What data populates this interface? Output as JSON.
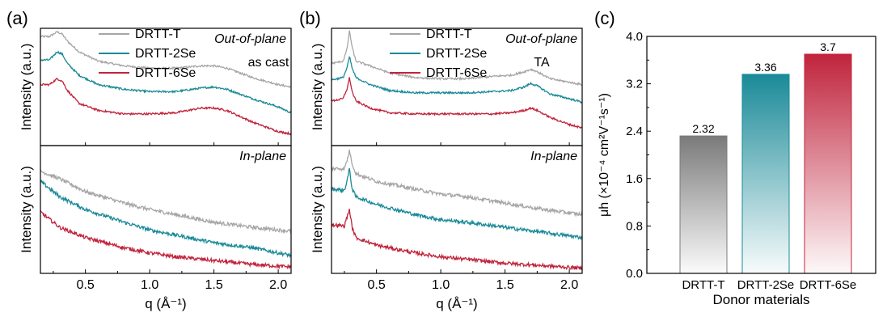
{
  "chart_data": [
    {
      "panel_label": "(a)",
      "type": "line",
      "subplots": [
        {
          "name": "out-of-plane",
          "annotation": "Out-of-plane",
          "annotation2": "as cast",
          "ylabel": "Intensity (a.u.)",
          "series": [
            {
              "name": "DRTT-T",
              "color": "#a6a6a6",
              "x": [
                0.15,
                0.22,
                0.28,
                0.32,
                0.36,
                0.45,
                0.6,
                0.8,
                1.0,
                1.2,
                1.4,
                1.5,
                1.6,
                1.8,
                2.0,
                2.1
              ],
              "y": [
                0.93,
                0.93,
                0.97,
                0.95,
                0.89,
                0.8,
                0.72,
                0.68,
                0.66,
                0.66,
                0.68,
                0.68,
                0.66,
                0.58,
                0.52,
                0.5
              ]
            },
            {
              "name": "DRTT-2Se",
              "color": "#1a8a98",
              "x": [
                0.15,
                0.22,
                0.28,
                0.32,
                0.36,
                0.45,
                0.6,
                0.8,
                1.0,
                1.2,
                1.4,
                1.5,
                1.6,
                1.8,
                2.0,
                2.1
              ],
              "y": [
                0.73,
                0.73,
                0.8,
                0.78,
                0.7,
                0.6,
                0.52,
                0.48,
                0.46,
                0.46,
                0.49,
                0.5,
                0.48,
                0.4,
                0.33,
                0.28
              ]
            },
            {
              "name": "DRTT-6Se",
              "color": "#c0243c",
              "x": [
                0.15,
                0.22,
                0.28,
                0.32,
                0.36,
                0.45,
                0.6,
                0.8,
                1.0,
                1.2,
                1.4,
                1.5,
                1.6,
                1.8,
                2.0,
                2.1
              ],
              "y": [
                0.52,
                0.52,
                0.57,
                0.55,
                0.47,
                0.36,
                0.3,
                0.27,
                0.27,
                0.28,
                0.32,
                0.32,
                0.3,
                0.2,
                0.12,
                0.1
              ]
            }
          ]
        },
        {
          "name": "in-plane",
          "annotation": "In-plane",
          "xlabel": "q (Å⁻¹)",
          "ylabel": "Intensity (a.u.)",
          "series": [
            {
              "name": "DRTT-T",
              "color": "#a6a6a6",
              "x": [
                0.15,
                0.3,
                0.5,
                0.8,
                1.0,
                1.2,
                1.5,
                1.8,
                2.1
              ],
              "y": [
                0.8,
                0.74,
                0.64,
                0.55,
                0.5,
                0.46,
                0.4,
                0.36,
                0.33
              ]
            },
            {
              "name": "DRTT-2Se",
              "color": "#1a8a98",
              "x": [
                0.15,
                0.3,
                0.5,
                0.8,
                1.0,
                1.2,
                1.5,
                1.8,
                2.1
              ],
              "y": [
                0.72,
                0.6,
                0.5,
                0.4,
                0.34,
                0.3,
                0.24,
                0.2,
                0.14
              ]
            },
            {
              "name": "DRTT-6Se",
              "color": "#c0243c",
              "x": [
                0.15,
                0.3,
                0.5,
                0.8,
                1.0,
                1.2,
                1.5,
                1.8,
                2.1
              ],
              "y": [
                0.48,
                0.36,
                0.28,
                0.2,
                0.16,
                0.13,
                0.1,
                0.07,
                0.05
              ]
            }
          ]
        }
      ],
      "xlim": [
        0.15,
        2.1
      ],
      "xticks": [
        "0.5",
        "1.0",
        "1.5",
        "2.0"
      ],
      "legend": [
        "DRTT-T",
        "DRTT-2Se",
        "DRTT-6Se"
      ]
    },
    {
      "panel_label": "(b)",
      "type": "line",
      "subplots": [
        {
          "name": "out-of-plane",
          "annotation": "Out-of-plane",
          "annotation2": "TA",
          "ylabel": "Intensity (a.u.)",
          "series": [
            {
              "name": "DRTT-T",
              "color": "#a6a6a6",
              "x": [
                0.15,
                0.24,
                0.27,
                0.29,
                0.31,
                0.34,
                0.45,
                0.6,
                0.8,
                1.0,
                1.2,
                1.4,
                1.55,
                1.65,
                1.7,
                1.75,
                1.85,
                2.0,
                2.1
              ],
              "y": [
                0.7,
                0.72,
                0.82,
                0.98,
                0.84,
                0.72,
                0.68,
                0.62,
                0.58,
                0.57,
                0.57,
                0.59,
                0.6,
                0.63,
                0.65,
                0.63,
                0.57,
                0.54,
                0.52
              ]
            },
            {
              "name": "DRTT-2Se",
              "color": "#1a8a98",
              "x": [
                0.15,
                0.24,
                0.27,
                0.29,
                0.31,
                0.34,
                0.45,
                0.6,
                0.8,
                1.0,
                1.2,
                1.4,
                1.55,
                1.65,
                1.7,
                1.75,
                1.85,
                2.0,
                2.1
              ],
              "y": [
                0.56,
                0.58,
                0.66,
                0.76,
                0.66,
                0.58,
                0.52,
                0.47,
                0.45,
                0.45,
                0.45,
                0.46,
                0.47,
                0.5,
                0.53,
                0.51,
                0.44,
                0.4,
                0.37
              ]
            },
            {
              "name": "DRTT-6Se",
              "color": "#c0243c",
              "x": [
                0.15,
                0.24,
                0.27,
                0.29,
                0.31,
                0.34,
                0.45,
                0.6,
                0.8,
                1.0,
                1.2,
                1.4,
                1.55,
                1.65,
                1.7,
                1.75,
                1.85,
                2.0,
                2.1
              ],
              "y": [
                0.38,
                0.4,
                0.48,
                0.58,
                0.46,
                0.38,
                0.32,
                0.28,
                0.27,
                0.27,
                0.27,
                0.27,
                0.28,
                0.3,
                0.32,
                0.3,
                0.24,
                0.18,
                0.15
              ]
            }
          ]
        },
        {
          "name": "in-plane",
          "annotation": "In-plane",
          "xlabel": "q (Å⁻¹)",
          "ylabel": "Intensity (a.u.)",
          "series": [
            {
              "name": "DRTT-T",
              "color": "#a6a6a6",
              "x": [
                0.15,
                0.25,
                0.27,
                0.29,
                0.31,
                0.34,
                0.5,
                0.8,
                1.0,
                1.2,
                1.5,
                1.8,
                2.1
              ],
              "y": [
                0.82,
                0.82,
                0.88,
                0.96,
                0.86,
                0.78,
                0.72,
                0.66,
                0.62,
                0.6,
                0.55,
                0.5,
                0.46
              ]
            },
            {
              "name": "DRTT-2Se",
              "color": "#1a8a98",
              "x": [
                0.15,
                0.25,
                0.27,
                0.29,
                0.31,
                0.34,
                0.5,
                0.8,
                1.0,
                1.2,
                1.5,
                1.8,
                2.1
              ],
              "y": [
                0.66,
                0.65,
                0.72,
                0.82,
                0.66,
                0.6,
                0.54,
                0.46,
                0.42,
                0.4,
                0.36,
                0.32,
                0.28
              ]
            },
            {
              "name": "DRTT-6Se",
              "color": "#c0243c",
              "x": [
                0.15,
                0.25,
                0.27,
                0.29,
                0.31,
                0.34,
                0.5,
                0.8,
                1.0,
                1.2,
                1.5,
                1.8,
                2.1
              ],
              "y": [
                0.38,
                0.37,
                0.44,
                0.5,
                0.36,
                0.28,
                0.22,
                0.16,
                0.13,
                0.11,
                0.08,
                0.06,
                0.04
              ]
            }
          ]
        }
      ],
      "xlim": [
        0.15,
        2.1
      ],
      "xticks": [
        "0.5",
        "1.0",
        "1.5",
        "2.0"
      ],
      "legend": [
        "DRTT-T",
        "DRTT-2Se",
        "DRTT-6Se"
      ]
    },
    {
      "panel_label": "(c)",
      "type": "bar",
      "categories": [
        "DRTT-T",
        "DRTT-2Se",
        "DRTT-6Se"
      ],
      "values": [
        2.32,
        3.36,
        3.7
      ],
      "value_labels": [
        "2.32",
        "3.36",
        "3.7"
      ],
      "colors": [
        "#7a7a7a",
        "#1a8a98",
        "#c0243c"
      ],
      "fill": "vertical gradient fading to white at bottom",
      "ylim": [
        0,
        4.0
      ],
      "yticks": [
        "0.0",
        "0.8",
        "1.6",
        "2.4",
        "3.2",
        "4.0"
      ],
      "xlabel": "Donor materials",
      "ylabel": "μh (×10⁻⁴ cm²V⁻¹s⁻¹)"
    }
  ]
}
